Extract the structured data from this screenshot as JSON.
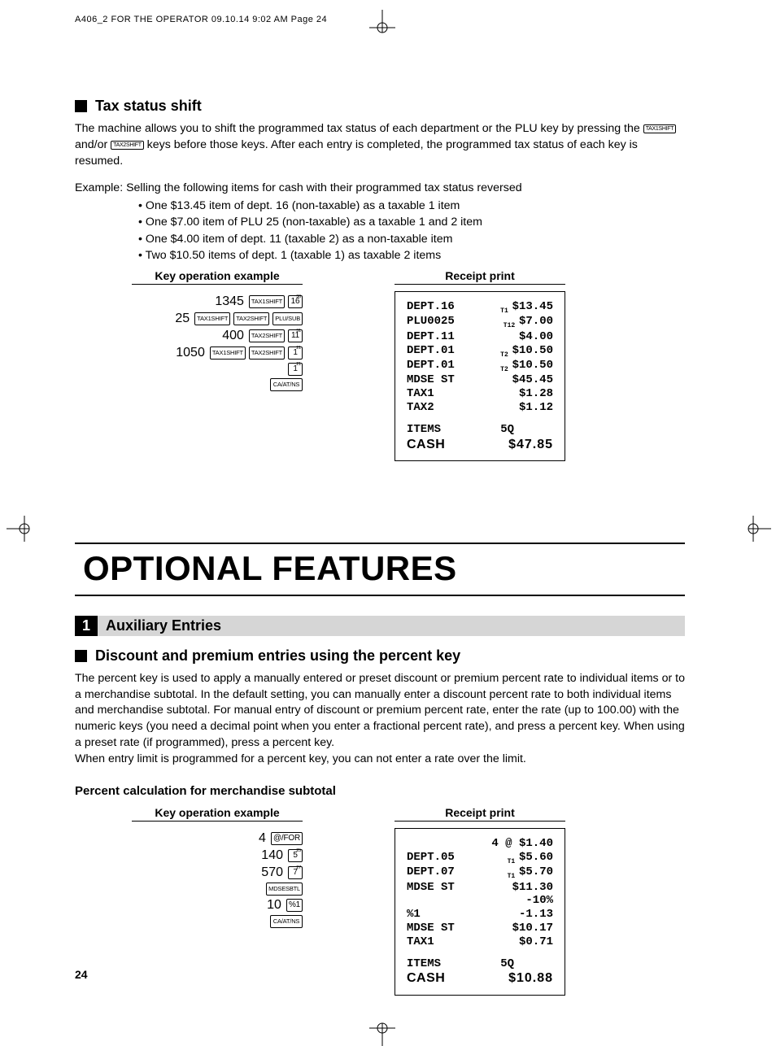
{
  "printHeader": "A406_2 FOR THE OPERATOR  09.10.14 9:02 AM  Page 24",
  "pageNumber": "24",
  "section1": {
    "title": "Tax status shift",
    "para_a": "The machine allows you to shift the programmed tax status of each department or the PLU key by pressing the ",
    "key1": "TAX1SHIFT",
    "mid": " and/or ",
    "key2": "TAX2SHIFT",
    "para_b": " keys before those keys. After each entry is completed, the programmed tax status of each key is resumed.",
    "example": "Example: Selling the following items for cash with their programmed tax status reversed",
    "bullets": [
      "• One $13.45 item of dept. 16 (non-taxable) as a taxable 1 item",
      "• One $7.00 item of PLU 25 (non-taxable) as a taxable 1 and 2 item",
      "• One $4.00 item of dept. 11 (taxable 2) as a non-taxable item",
      "• Two $10.50 items of dept. 1 (taxable 1) as taxable 2 items"
    ]
  },
  "headers": {
    "keyOp": "Key operation example",
    "receipt": "Receipt print"
  },
  "keyOps1": [
    {
      "num": "1345",
      "keys": [
        {
          "t": "TAX1SHIFT"
        },
        {
          "t": "16",
          "sup": "36",
          "small": true
        }
      ]
    },
    {
      "num": "25",
      "keys": [
        {
          "t": "TAX1SHIFT"
        },
        {
          "t": "TAX2SHIFT"
        },
        {
          "t": "PLU/SUB"
        }
      ]
    },
    {
      "num": "400",
      "keys": [
        {
          "t": "TAX2SHIFT"
        },
        {
          "t": "11",
          "sup": "31",
          "small": true
        }
      ]
    },
    {
      "num": "1050",
      "keys": [
        {
          "t": "TAX1SHIFT"
        },
        {
          "t": "TAX2SHIFT"
        },
        {
          "t": "1",
          "sup": "21",
          "small": true
        }
      ]
    },
    {
      "num": "",
      "keys": [
        {
          "t": "1",
          "sup": "21",
          "small": true
        }
      ]
    },
    {
      "num": "",
      "keys": [
        {
          "t": "CA/AT/NS",
          "wide": true
        }
      ]
    }
  ],
  "receipt1": {
    "lines": [
      {
        "l": "DEPT.16",
        "p": "T1",
        "r": "$13.45"
      },
      {
        "l": "PLU0025",
        "p": "T12",
        "r": "$7.00"
      },
      {
        "l": "DEPT.11",
        "p": "",
        "r": "$4.00"
      },
      {
        "l": "DEPT.01",
        "p": "T2",
        "r": "$10.50"
      },
      {
        "l": "DEPT.01",
        "p": "T2",
        "r": "$10.50"
      },
      {
        "l": "MDSE ST",
        "p": "",
        "r": "$45.45"
      },
      {
        "l": "TAX1",
        "p": "",
        "r": "$1.28"
      },
      {
        "l": "TAX2",
        "p": "",
        "r": "$1.12"
      }
    ],
    "items": {
      "l": "ITEMS",
      "r": "5Q"
    },
    "cash": {
      "l": "CASH",
      "r": "$47.85"
    }
  },
  "chapter": "OPTIONAL FEATURES",
  "numSection": {
    "num": "1",
    "label": "Auxiliary Entries"
  },
  "section2": {
    "title": "Discount and premium entries using the percent key",
    "para": "The percent key is used to apply a manually entered or preset discount or premium percent rate to individual items or to a merchandise subtotal.  In the default setting, you can manually enter a discount percent rate to both individual items and merchandise subtotal.  For manual entry of discount or premium percent rate, enter the rate (up to 100.00) with the numeric keys (you need a decimal point when you enter a fractional percent rate), and press a percent key.  When using a preset rate (if programmed), press a percent key.",
    "para2": "When entry limit is programmed for a percent key, you can not enter a rate over the limit.",
    "sub": "Percent calculation for merchandise subtotal"
  },
  "keyOps2": [
    {
      "num": "4",
      "keys": [
        {
          "t": "@/FOR",
          "small": true,
          "round": true
        }
      ]
    },
    {
      "num": "140",
      "keys": [
        {
          "t": "5",
          "sup": "25",
          "small": true
        }
      ]
    },
    {
      "num": "570",
      "keys": [
        {
          "t": "7",
          "sup": "27",
          "small": true
        }
      ]
    },
    {
      "num": "",
      "keys": [
        {
          "t": "MDSESBTL",
          "wide": true
        }
      ]
    },
    {
      "num": "10",
      "keys": [
        {
          "t": "%1",
          "small": true
        }
      ]
    },
    {
      "num": "",
      "keys": [
        {
          "t": "CA/AT/NS",
          "wide": true
        }
      ]
    }
  ],
  "receipt2": {
    "pre": {
      "r": "4 @ $1.40"
    },
    "lines": [
      {
        "l": "DEPT.05",
        "p": "T1",
        "r": "$5.60"
      },
      {
        "l": "DEPT.07",
        "p": "T1",
        "r": "$5.70"
      },
      {
        "l": "MDSE ST",
        "p": "",
        "r": "$11.30"
      },
      {
        "l": "",
        "p": "",
        "r": "-10%"
      },
      {
        "l": "%1",
        "p": "",
        "r": "-1.13"
      },
      {
        "l": "MDSE ST",
        "p": "",
        "r": "$10.17"
      },
      {
        "l": "TAX1",
        "p": "",
        "r": "$0.71"
      }
    ],
    "items": {
      "l": "ITEMS",
      "r": "5Q"
    },
    "cash": {
      "l": "CASH",
      "r": "$10.88"
    }
  }
}
